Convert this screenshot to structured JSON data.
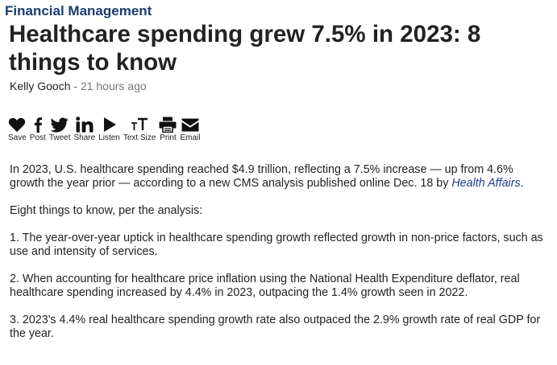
{
  "category": "Financial Management",
  "headline": "Healthcare spending grew 7.5% in 2023: 8 things to know",
  "byline": {
    "author": "Kelly Gooch",
    "separator": " - ",
    "time": "21 hours ago"
  },
  "share": [
    {
      "icon": "heart-icon",
      "label": "Save"
    },
    {
      "icon": "facebook-icon",
      "label": "Post"
    },
    {
      "icon": "twitter-icon",
      "label": "Tweet"
    },
    {
      "icon": "linkedin-icon",
      "label": "Share"
    },
    {
      "icon": "play-icon",
      "label": "Listen"
    },
    {
      "icon": "text-size-icon",
      "label": "Text Size"
    },
    {
      "icon": "print-icon",
      "label": "Print"
    },
    {
      "icon": "email-icon",
      "label": "Email"
    }
  ],
  "article": {
    "intro_text": "In 2023, U.S. healthcare spending reached $4.9 trillion, reflecting a 7.5% increase — up from 4.6% growth the year prior — according to a new CMS analysis published online Dec. 18 by ",
    "intro_link": "Health Affairs",
    "intro_end": ".",
    "lead": "Eight things to know, per the analysis:",
    "points": [
      "1. The year-over-year uptick in healthcare spending growth reflected growth in non-price factors, such as use and intensity of services.",
      "2. When accounting for healthcare price inflation using the National Health Expenditure deflator, real healthcare spending increased by 4.4% in 2023, outpacing the 1.4% growth seen in 2022.",
      "3. 2023's 4.4% real healthcare spending growth rate  also outpaced the 2.9% growth rate of real GDP for the year."
    ]
  }
}
